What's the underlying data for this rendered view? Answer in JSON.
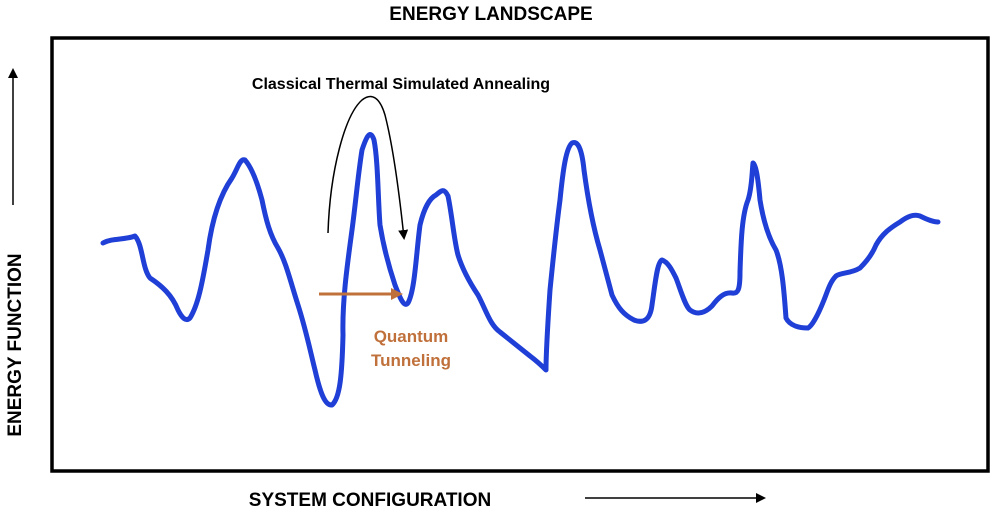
{
  "title": "ENERGY LANDSCAPE",
  "x_axis_label": "SYSTEM CONFIGURATION",
  "y_axis_label": "ENERGY FUNCTION",
  "annotations": {
    "classical": "Classical Thermal Simulated Annealing",
    "quantum_line1": "Quantum",
    "quantum_line2": "Tunneling"
  },
  "colors": {
    "landscape": "#1f3fd6",
    "tunneling": "#c0703a",
    "frame": "#000000"
  }
}
